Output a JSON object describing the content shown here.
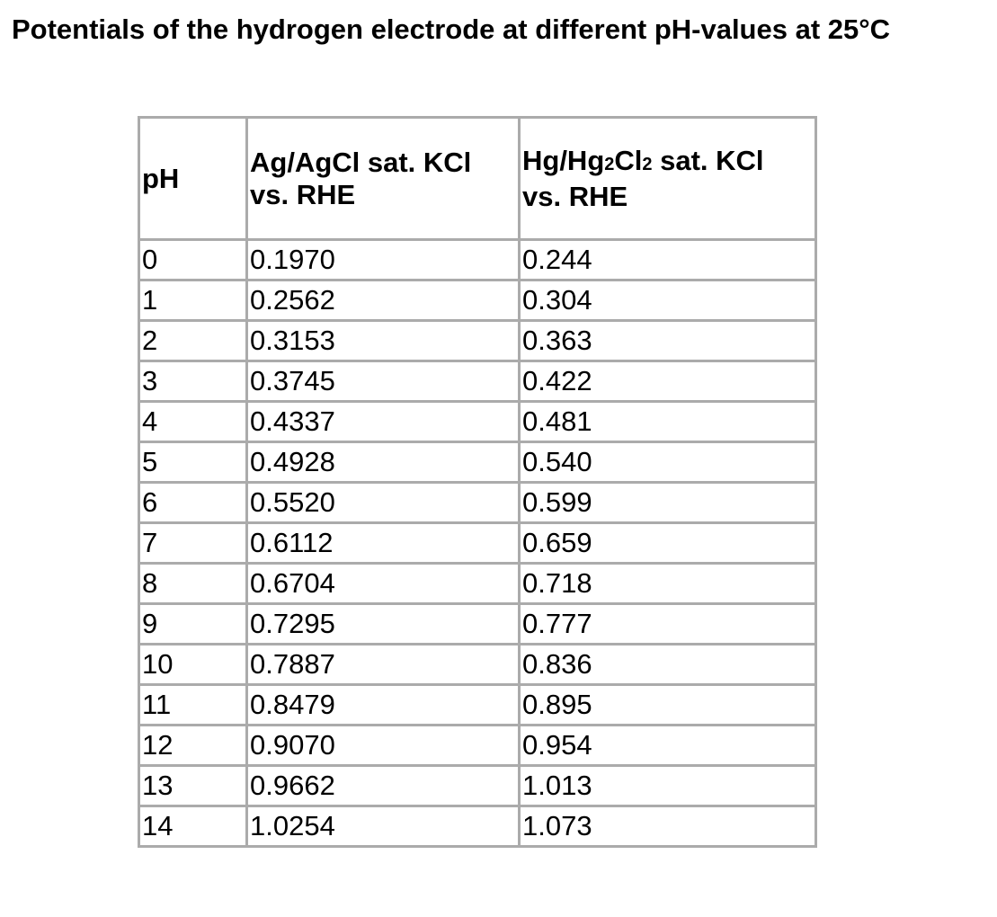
{
  "title": "Potentials of the hydrogen electrode at different pH-values at 25°C",
  "table": {
    "headers": {
      "ph": "pH",
      "agcl_line1": "Ag/AgCl sat. KCl",
      "agcl_line2": "vs. RHE",
      "hg_prefix": "Hg/Hg",
      "hg_sub1": "2",
      "hg_mid": "Cl",
      "hg_sub2": "2",
      "hg_suffix": " sat. KCl",
      "hg_line2": "vs. RHE"
    },
    "rows": [
      {
        "ph": "0",
        "agcl": "0.1970",
        "hg": "0.244"
      },
      {
        "ph": "1",
        "agcl": "0.2562",
        "hg": "0.304"
      },
      {
        "ph": "2",
        "agcl": "0.3153",
        "hg": "0.363"
      },
      {
        "ph": "3",
        "agcl": "0.3745",
        "hg": "0.422"
      },
      {
        "ph": "4",
        "agcl": "0.4337",
        "hg": "0.481"
      },
      {
        "ph": "5",
        "agcl": "0.4928",
        "hg": "0.540"
      },
      {
        "ph": "6",
        "agcl": "0.5520",
        "hg": "0.599"
      },
      {
        "ph": "7",
        "agcl": "0.6112",
        "hg": "0.659"
      },
      {
        "ph": "8",
        "agcl": "0.6704",
        "hg": "0.718"
      },
      {
        "ph": "9",
        "agcl": "0.7295",
        "hg": "0.777"
      },
      {
        "ph": "10",
        "agcl": "0.7887",
        "hg": "0.836"
      },
      {
        "ph": "11",
        "agcl": "0.8479",
        "hg": "0.895"
      },
      {
        "ph": "12",
        "agcl": "0.9070",
        "hg": "0.954"
      },
      {
        "ph": "13",
        "agcl": "0.9662",
        "hg": "1.013"
      },
      {
        "ph": "14",
        "agcl": "1.0254",
        "hg": "1.073"
      }
    ]
  },
  "colors": {
    "border": "#ababab",
    "text": "#000000",
    "background": "#ffffff"
  }
}
